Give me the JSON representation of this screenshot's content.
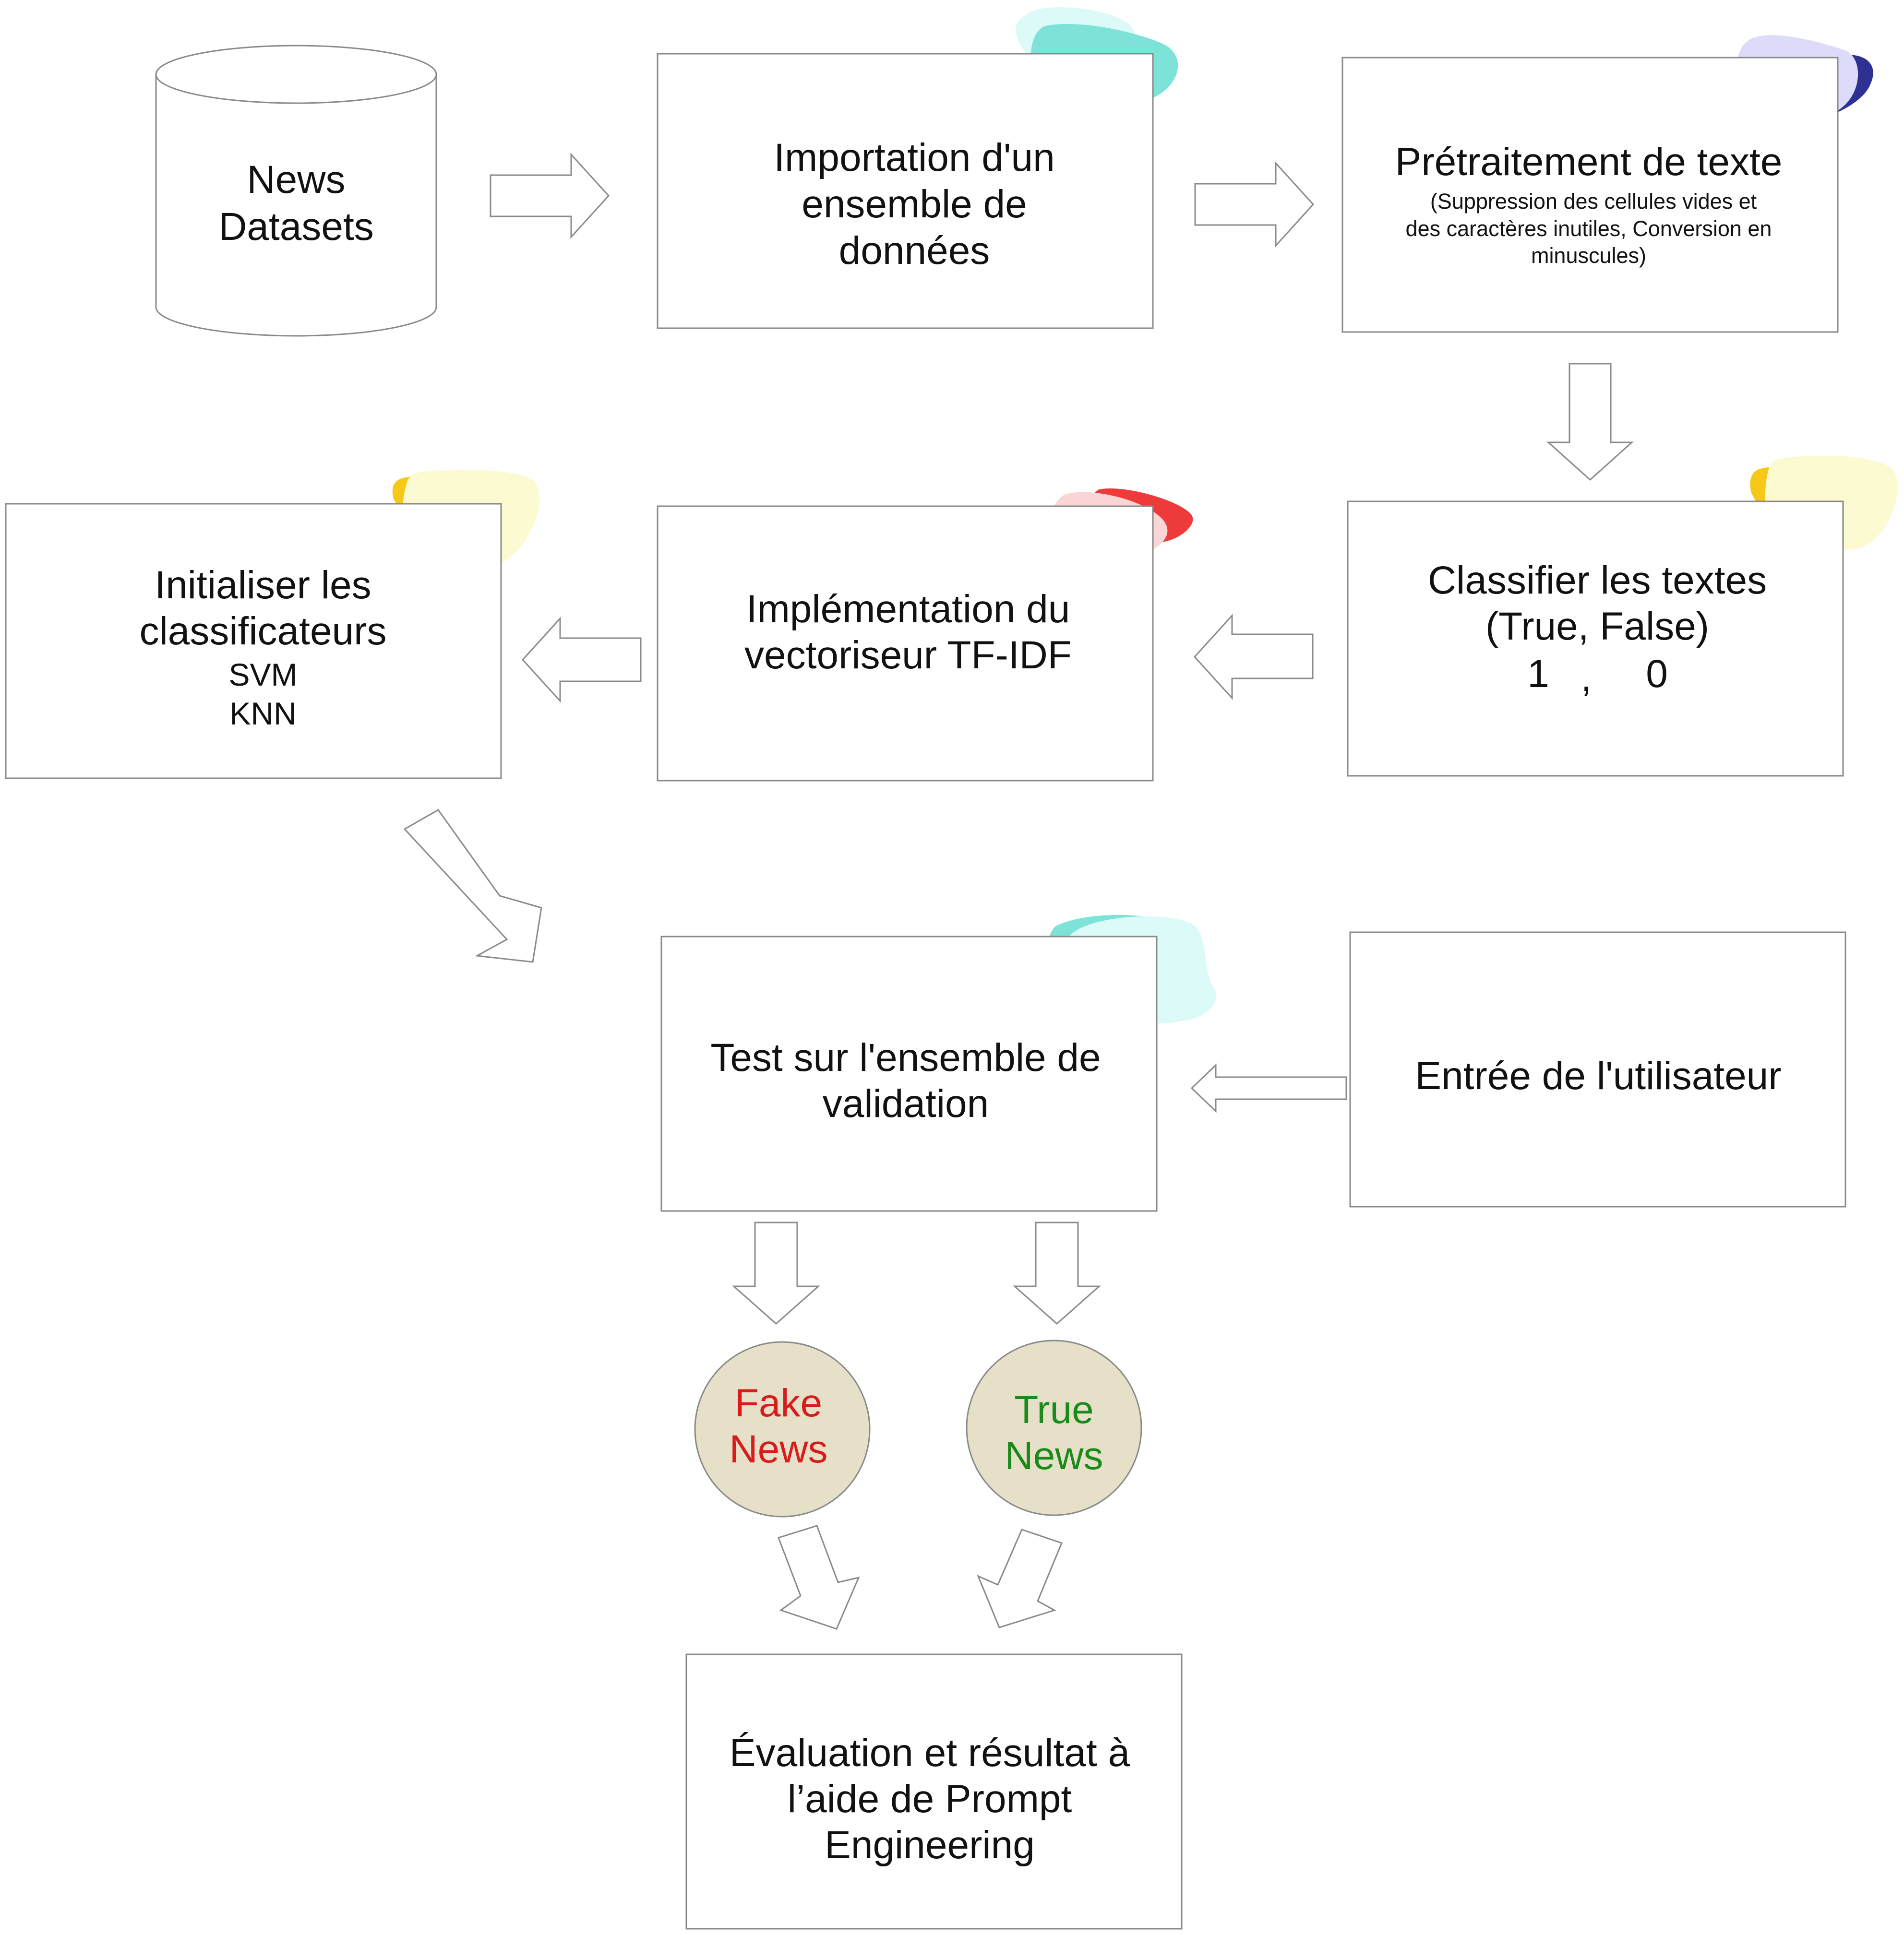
{
  "nodes": {
    "datasets": {
      "line1": "News",
      "line2": "Datasets"
    },
    "import": {
      "line1": "Importation d'un",
      "line2": "ensemble de",
      "line3": "données"
    },
    "preprocess": {
      "title": "Prétraitement de texte",
      "detail1": "(Suppression des cellules vides et",
      "detail2": "des caractères inutiles, Conversion en",
      "detail3": "minuscules)"
    },
    "classify": {
      "line1": "Classifier les textes",
      "line2": "(True, False)",
      "value_true": "1",
      "sep": ",",
      "value_false": "0"
    },
    "tfidf": {
      "line1": "Implémentation du",
      "line2": "vectoriseur TF-IDF"
    },
    "classifiers": {
      "line1": "Initialiser les",
      "line2": "classificateurs",
      "item1": "SVM",
      "item2": "KNN"
    },
    "test": {
      "line1": "Test sur l'ensemble de",
      "line2": "validation"
    },
    "user_input": {
      "line1": "Entrée de l'utilisateur"
    },
    "fake": {
      "line1": "Fake",
      "line2": "News"
    },
    "true": {
      "line1": "True",
      "line2": "News"
    },
    "evaluation": {
      "line1": "Évaluation et résultat à",
      "line2": "l’aide de Prompt",
      "line3": "Engineering"
    }
  },
  "colors": {
    "fake_text": "#d81b1b",
    "true_text": "#1a8a1a",
    "circle_fill": "#e6e0c8",
    "blob_teal": "#7de3d8",
    "blob_teal_light": "#dcfbf8",
    "blob_lavender": "#dcdcfa",
    "blob_navy": "#2f3192",
    "blob_yellow": "#f6c817",
    "blob_yellow_light": "#fbfad0",
    "blob_pink": "#fbd6d6",
    "blob_red": "#ee3a3a"
  }
}
